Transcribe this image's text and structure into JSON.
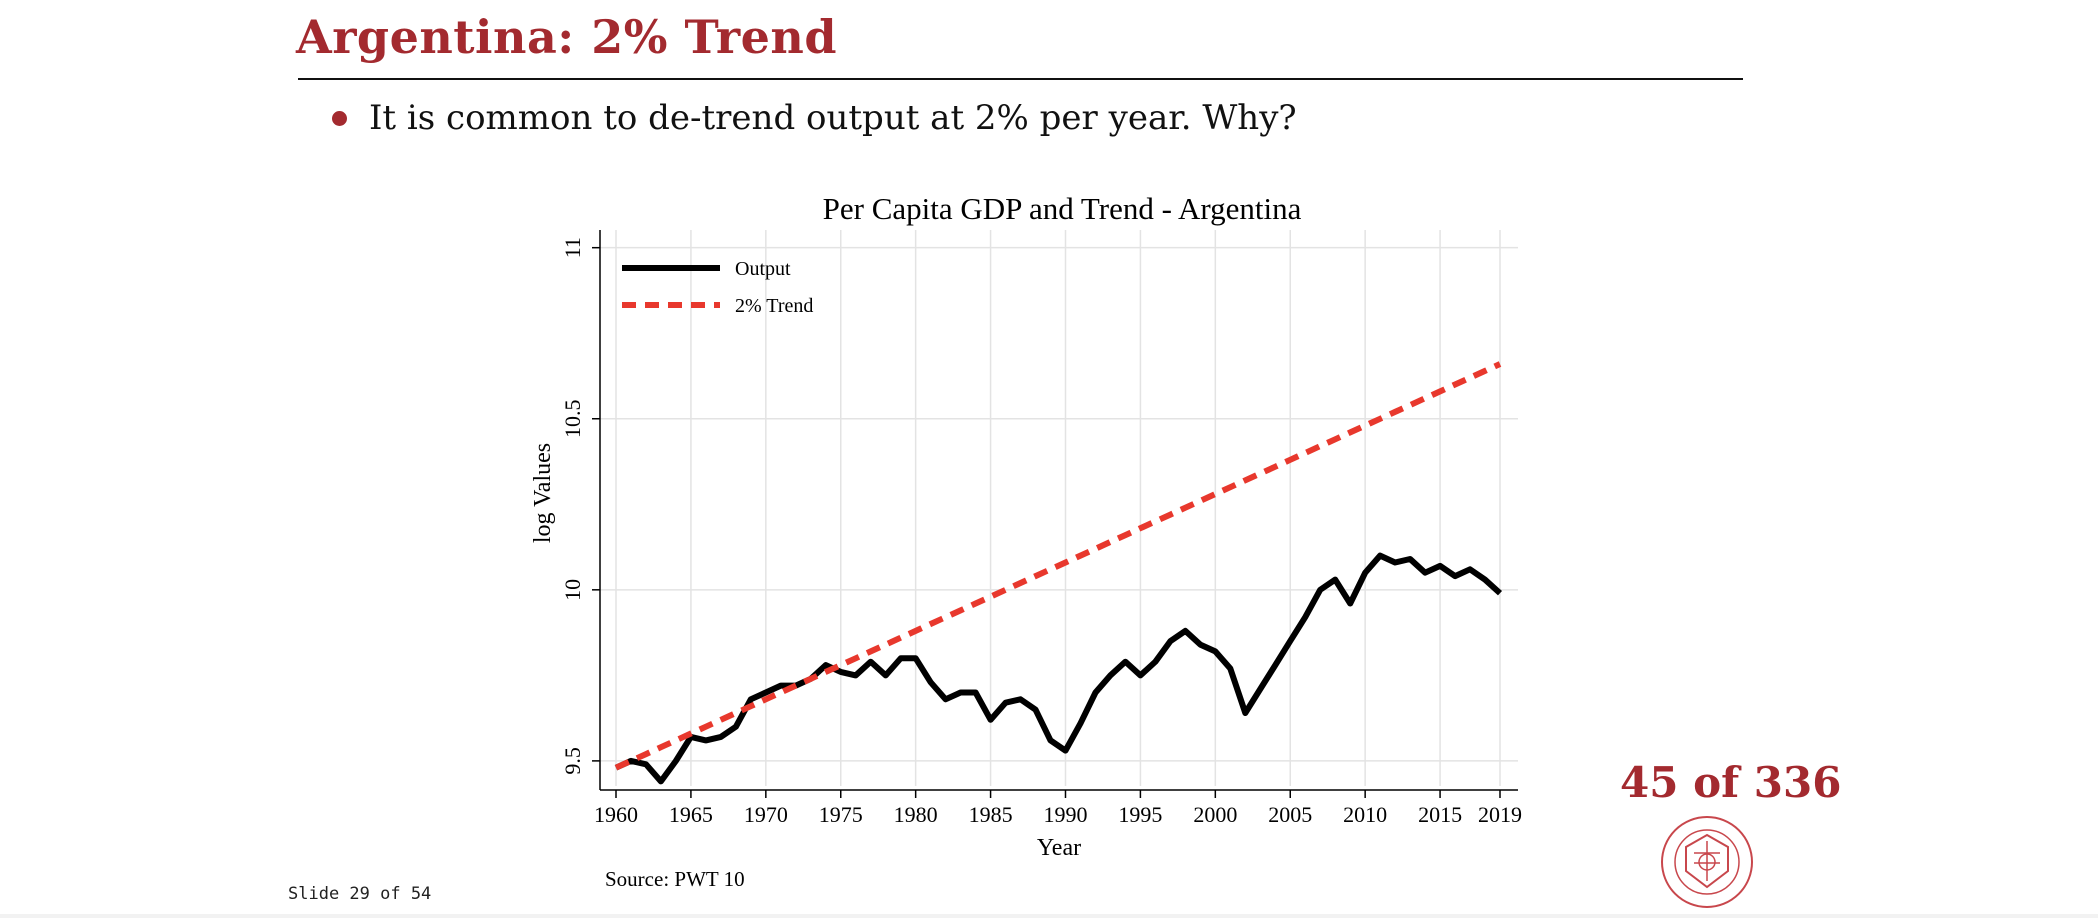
{
  "slide": {
    "title": "Argentina: 2% Trend",
    "bullet": "It is common to de-trend output at 2% per year. Why?",
    "slide_counter": "Slide 29 of 54",
    "page_count": "45 of 336",
    "seal_alt": "Carnegie Mellon University seal"
  },
  "colors": {
    "accent": "#a32a2f",
    "output_line": "#000000",
    "trend_line": "#e8382d",
    "grid": "#e3e3e3"
  },
  "chart_data": {
    "type": "line",
    "title": "Per Capita GDP and Trend - Argentina",
    "xlabel": "Year",
    "ylabel": "log Values",
    "source": "Source: PWT 10",
    "xlim": [
      1960,
      2019
    ],
    "ylim": [
      9.45,
      11.04
    ],
    "xticks": [
      1960,
      1965,
      1970,
      1975,
      1980,
      1985,
      1990,
      1995,
      2000,
      2005,
      2010,
      2015,
      2019
    ],
    "yticks": [
      9.5,
      10,
      10.5,
      11
    ],
    "ytick_labels": [
      "9.5",
      "10",
      "10.5",
      "11"
    ],
    "grid": true,
    "legend_position": "top-left",
    "x": [
      1960,
      1961,
      1962,
      1963,
      1964,
      1965,
      1966,
      1967,
      1968,
      1969,
      1970,
      1971,
      1972,
      1973,
      1974,
      1975,
      1976,
      1977,
      1978,
      1979,
      1980,
      1981,
      1982,
      1983,
      1984,
      1985,
      1986,
      1987,
      1988,
      1989,
      1990,
      1991,
      1992,
      1993,
      1994,
      1995,
      1996,
      1997,
      1998,
      1999,
      2000,
      2001,
      2002,
      2003,
      2004,
      2005,
      2006,
      2007,
      2008,
      2009,
      2010,
      2011,
      2012,
      2013,
      2014,
      2015,
      2016,
      2017,
      2018,
      2019
    ],
    "series": [
      {
        "name": "Output",
        "style": "solid",
        "values": [
          9.48,
          9.5,
          9.49,
          9.44,
          9.5,
          9.57,
          9.56,
          9.57,
          9.6,
          9.68,
          9.7,
          9.72,
          9.72,
          9.74,
          9.78,
          9.76,
          9.75,
          9.79,
          9.75,
          9.8,
          9.8,
          9.73,
          9.68,
          9.7,
          9.7,
          9.62,
          9.67,
          9.68,
          9.65,
          9.56,
          9.53,
          9.61,
          9.7,
          9.75,
          9.79,
          9.75,
          9.79,
          9.85,
          9.88,
          9.84,
          9.82,
          9.77,
          9.64,
          9.71,
          9.78,
          9.85,
          9.92,
          10.0,
          10.03,
          9.96,
          10.05,
          10.1,
          10.08,
          10.09,
          10.05,
          10.07,
          10.04,
          10.06,
          10.03,
          9.99
        ]
      },
      {
        "name": "2% Trend",
        "style": "dashed",
        "values": [
          9.48,
          9.5,
          9.52,
          9.54,
          9.56,
          9.58,
          9.6,
          9.62,
          9.64,
          9.66,
          9.68,
          9.7,
          9.72,
          9.74,
          9.76,
          9.78,
          9.8,
          9.82,
          9.84,
          9.86,
          9.88,
          9.9,
          9.92,
          9.94,
          9.96,
          9.98,
          10.0,
          10.02,
          10.04,
          10.06,
          10.08,
          10.1,
          10.12,
          10.14,
          10.16,
          10.18,
          10.2,
          10.22,
          10.24,
          10.26,
          10.28,
          10.3,
          10.32,
          10.34,
          10.36,
          10.38,
          10.4,
          10.42,
          10.44,
          10.46,
          10.48,
          10.5,
          10.52,
          10.54,
          10.56,
          10.58,
          10.6,
          10.62,
          10.64,
          10.66
        ]
      }
    ]
  }
}
